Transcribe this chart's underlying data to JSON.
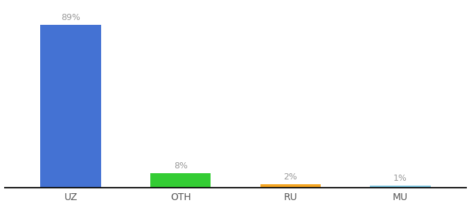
{
  "categories": [
    "UZ",
    "OTH",
    "RU",
    "MU"
  ],
  "values": [
    89,
    8,
    2,
    1
  ],
  "labels": [
    "89%",
    "8%",
    "2%",
    "1%"
  ],
  "bar_colors": [
    "#4472d3",
    "#33cc33",
    "#f5a623",
    "#7ec8e3"
  ],
  "background_color": "#ffffff",
  "ylim": [
    0,
    100
  ],
  "bar_width": 0.55,
  "x_positions": [
    0,
    1,
    2,
    3
  ],
  "label_color": "#999999",
  "label_fontsize": 9,
  "tick_fontsize": 10,
  "tick_color": "#555555"
}
